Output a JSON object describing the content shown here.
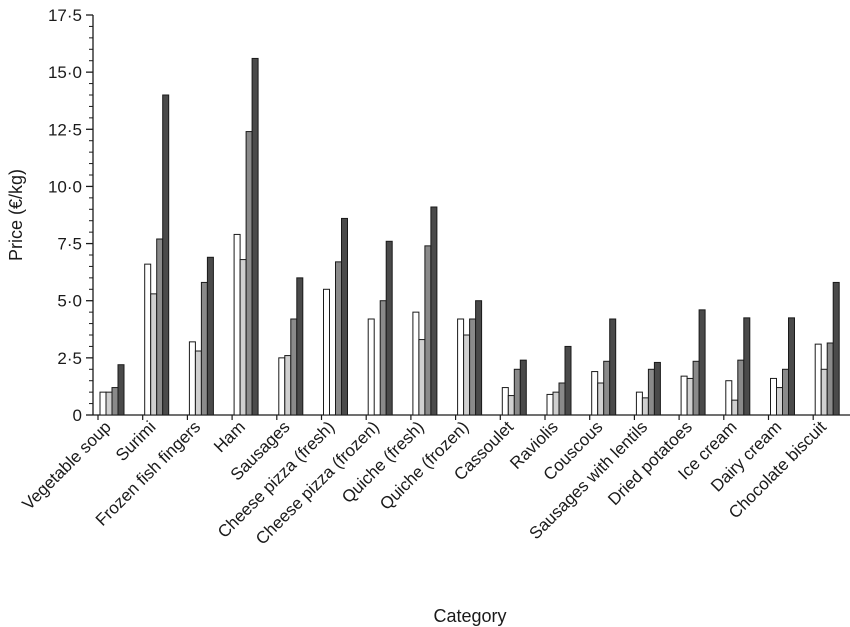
{
  "chart_data": {
    "type": "bar",
    "xlabel": "Category",
    "ylabel": "Price (€/kg)",
    "ylim": [
      0,
      17.5
    ],
    "yticks": [
      0,
      2.5,
      5,
      7.5,
      10,
      12.5,
      15,
      17.5
    ],
    "ytick_labels": [
      "0",
      "2·5",
      "5·0",
      "7·5",
      "10·0",
      "12·5",
      "15·0",
      "17·5"
    ],
    "grid": false,
    "legend": "none",
    "categories": [
      "Vegetable soup",
      "Surimi",
      "Frozen fish fingers",
      "Ham",
      "Sausages",
      "Cheese pizza (fresh)",
      "Cheese pizza (frozen)",
      "Quiche (fresh)",
      "Quiche (frozen)",
      "Cassoulet",
      "Raviolis",
      "Couscous",
      "Sausages with lentils",
      "Dried potatoes",
      "Ice cream",
      "Dairy cream",
      "Chocolate biscuit"
    ],
    "series_colors": [
      "#ffffff",
      "#d0d0d0",
      "#8a8a8a",
      "#4a4a4a"
    ],
    "series": [
      {
        "values": [
          1.0,
          6.6,
          3.2,
          7.9,
          2.5,
          5.5,
          4.2,
          4.5,
          4.2,
          1.2,
          0.9,
          1.9,
          1.0,
          1.7,
          1.5,
          1.6,
          3.1
        ]
      },
      {
        "values": [
          1.0,
          5.3,
          2.8,
          6.8,
          2.6,
          0,
          0,
          3.3,
          3.5,
          0.85,
          1.0,
          1.4,
          0.75,
          1.6,
          0.65,
          1.2,
          2.0
        ]
      },
      {
        "values": [
          1.2,
          7.7,
          5.8,
          12.4,
          4.2,
          6.7,
          5.0,
          7.4,
          4.2,
          2.0,
          1.4,
          2.35,
          2.0,
          2.35,
          2.4,
          2.0,
          3.15
        ]
      },
      {
        "values": [
          2.2,
          14.0,
          6.9,
          15.6,
          6.0,
          8.6,
          7.6,
          9.1,
          5.0,
          2.4,
          3.0,
          4.2,
          2.3,
          4.6,
          4.25,
          4.25,
          5.8
        ]
      }
    ]
  }
}
